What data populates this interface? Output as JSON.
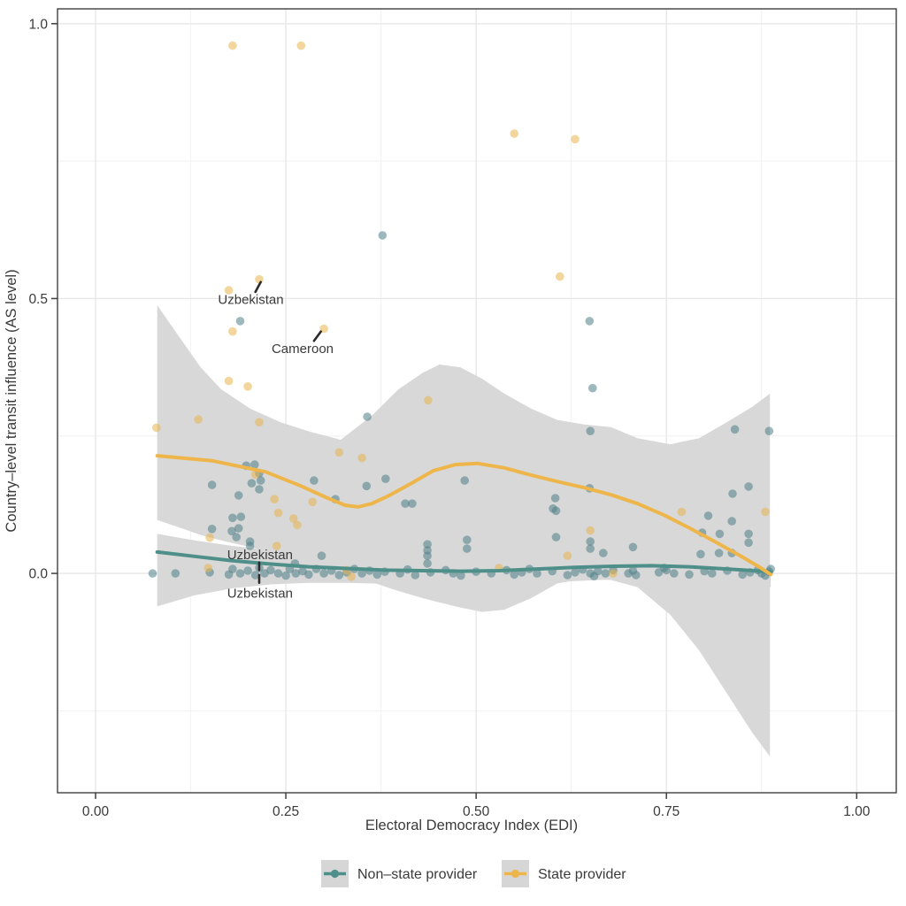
{
  "chart_data": {
    "type": "scatter",
    "title": "",
    "xlabel": "Electoral Democracy Index (EDI)",
    "ylabel": "Country–level transit influence (AS level)",
    "xlim": [
      -0.05,
      1.052
    ],
    "ylim": [
      -0.399,
      1.027
    ],
    "grid": true,
    "legend_position": "bottom",
    "x_major_ticks": [
      {
        "v": 0.0,
        "label": "0.00"
      },
      {
        "v": 0.25,
        "label": "0.25"
      },
      {
        "v": 0.5,
        "label": "0.50"
      },
      {
        "v": 0.75,
        "label": "0.75"
      },
      {
        "v": 1.0,
        "label": "1.00"
      }
    ],
    "x_minor_ticks": [
      0.125,
      0.375,
      0.625,
      0.875
    ],
    "y_major_ticks": [
      {
        "v": 0.0,
        "label": "0.0"
      },
      {
        "v": 0.5,
        "label": "0.5"
      },
      {
        "v": 1.0,
        "label": "1.0"
      }
    ],
    "y_minor_ticks": [
      -0.25,
      0.25,
      0.75
    ],
    "band_color": "#d8d8d8",
    "grid_major_color": "#e7e7e7",
    "grid_minor_color": "#f3f3f3",
    "series": [
      {
        "name": "Non-state provider",
        "line_color": "#4e8f8a",
        "point_color": "#4e7f86",
        "points": [
          [
            0.377,
            0.615
          ],
          [
            0.649,
            0.459
          ],
          [
            0.19,
            0.459
          ],
          [
            0.653,
            0.337
          ],
          [
            0.357,
            0.285
          ],
          [
            0.65,
            0.259
          ],
          [
            0.84,
            0.262
          ],
          [
            0.885,
            0.259
          ],
          [
            0.153,
            0.161
          ],
          [
            0.198,
            0.196
          ],
          [
            0.209,
            0.198
          ],
          [
            0.215,
            0.182
          ],
          [
            0.205,
            0.164
          ],
          [
            0.287,
            0.169
          ],
          [
            0.356,
            0.159
          ],
          [
            0.381,
            0.172
          ],
          [
            0.485,
            0.169
          ],
          [
            0.315,
            0.135
          ],
          [
            0.407,
            0.127
          ],
          [
            0.416,
            0.127
          ],
          [
            0.604,
            0.137
          ],
          [
            0.601,
            0.118
          ],
          [
            0.649,
            0.155
          ],
          [
            0.858,
            0.158
          ],
          [
            0.837,
            0.145
          ],
          [
            0.805,
            0.105
          ],
          [
            0.836,
            0.095
          ],
          [
            0.797,
            0.074
          ],
          [
            0.82,
            0.072
          ],
          [
            0.858,
            0.072
          ],
          [
            0.858,
            0.056
          ],
          [
            0.836,
            0.037
          ],
          [
            0.795,
            0.035
          ],
          [
            0.819,
            0.037
          ],
          [
            0.153,
            0.081
          ],
          [
            0.18,
            0.101
          ],
          [
            0.191,
            0.103
          ],
          [
            0.179,
            0.077
          ],
          [
            0.188,
            0.082
          ],
          [
            0.185,
            0.066
          ],
          [
            0.203,
            0.058
          ],
          [
            0.203,
            0.05
          ],
          [
            0.262,
            0.018
          ],
          [
            0.297,
            0.032
          ],
          [
            0.188,
            0.142
          ],
          [
            0.215,
            0.153
          ],
          [
            0.217,
            0.169
          ],
          [
            0.488,
            0.061
          ],
          [
            0.488,
            0.045
          ],
          [
            0.436,
            0.053
          ],
          [
            0.436,
            0.042
          ],
          [
            0.436,
            0.032
          ],
          [
            0.436,
            0.018
          ],
          [
            0.605,
            0.114
          ],
          [
            0.605,
            0.066
          ],
          [
            0.65,
            0.058
          ],
          [
            0.65,
            0.045
          ],
          [
            0.667,
            0.037
          ],
          [
            0.706,
            0.048
          ],
          [
            0.706,
            0.005
          ],
          [
            0.747,
            0.01
          ],
          [
            0.075,
            0.0
          ],
          [
            0.105,
            0.0
          ],
          [
            0.15,
            0.002
          ],
          [
            0.175,
            -0.002
          ],
          [
            0.18,
            0.008
          ],
          [
            0.19,
            0.0
          ],
          [
            0.2,
            0.005
          ],
          [
            0.21,
            -0.003
          ],
          [
            0.215,
            0.01
          ],
          [
            0.222,
            0.0
          ],
          [
            0.23,
            0.006
          ],
          [
            0.24,
            0.0
          ],
          [
            0.25,
            -0.004
          ],
          [
            0.255,
            0.008
          ],
          [
            0.263,
            0.0
          ],
          [
            0.272,
            0.004
          ],
          [
            0.28,
            -0.002
          ],
          [
            0.29,
            0.008
          ],
          [
            0.3,
            0.0
          ],
          [
            0.31,
            0.005
          ],
          [
            0.32,
            -0.003
          ],
          [
            0.33,
            0.002
          ],
          [
            0.34,
            0.008
          ],
          [
            0.35,
            0.0
          ],
          [
            0.36,
            0.005
          ],
          [
            0.37,
            -0.002
          ],
          [
            0.38,
            0.003
          ],
          [
            0.4,
            0.0
          ],
          [
            0.41,
            0.007
          ],
          [
            0.42,
            -0.003
          ],
          [
            0.44,
            0.002
          ],
          [
            0.46,
            0.006
          ],
          [
            0.47,
            0.0
          ],
          [
            0.48,
            -0.004
          ],
          [
            0.5,
            0.003
          ],
          [
            0.52,
            0.0
          ],
          [
            0.54,
            0.006
          ],
          [
            0.55,
            -0.002
          ],
          [
            0.56,
            0.002
          ],
          [
            0.57,
            0.008
          ],
          [
            0.58,
            0.0
          ],
          [
            0.6,
            0.004
          ],
          [
            0.62,
            -0.003
          ],
          [
            0.63,
            0.002
          ],
          [
            0.64,
            0.007
          ],
          [
            0.65,
            0.0
          ],
          [
            0.655,
            -0.005
          ],
          [
            0.66,
            0.004
          ],
          [
            0.67,
            0.0
          ],
          [
            0.68,
            0.006
          ],
          [
            0.7,
            0.0
          ],
          [
            0.71,
            -0.003
          ],
          [
            0.74,
            0.002
          ],
          [
            0.75,
            0.006
          ],
          [
            0.76,
            0.0
          ],
          [
            0.78,
            -0.002
          ],
          [
            0.8,
            0.004
          ],
          [
            0.81,
            0.0
          ],
          [
            0.83,
            0.005
          ],
          [
            0.85,
            -0.002
          ],
          [
            0.86,
            0.002
          ],
          [
            0.87,
            0.006
          ],
          [
            0.875,
            0.0
          ],
          [
            0.88,
            -0.004
          ],
          [
            0.885,
            0.003
          ],
          [
            0.887,
            0.008
          ]
        ],
        "smooth_x": [
          0.081,
          0.13,
          0.18,
          0.23,
          0.28,
          0.33,
          0.38,
          0.43,
          0.48,
          0.53,
          0.58,
          0.63,
          0.68,
          0.73,
          0.78,
          0.83,
          0.887
        ],
        "smooth_y": [
          0.039,
          0.031,
          0.023,
          0.017,
          0.012,
          0.009,
          0.006,
          0.005,
          0.004,
          0.005,
          0.008,
          0.011,
          0.013,
          0.014,
          0.012,
          0.008,
          0.003
        ],
        "band_x": [
          0.081,
          0.13,
          0.18,
          0.23,
          0.28,
          0.33,
          0.38,
          0.43,
          0.48,
          0.53,
          0.58,
          0.63,
          0.68,
          0.73,
          0.78,
          0.83,
          0.887
        ],
        "band_upper": [
          0.072,
          0.06,
          0.05,
          0.042,
          0.033,
          0.026,
          0.021,
          0.018,
          0.017,
          0.018,
          0.021,
          0.024,
          0.026,
          0.025,
          0.022,
          0.018,
          0.013
        ],
        "band_lower": [
          -0.06,
          -0.04,
          -0.027,
          -0.02,
          -0.017,
          -0.017,
          -0.019,
          -0.021,
          -0.022,
          -0.021,
          -0.018,
          -0.014,
          -0.011,
          -0.012,
          -0.015,
          -0.019,
          -0.024
        ]
      },
      {
        "name": "State provider",
        "line_color": "#eeb64a",
        "point_color": "#e8b54c",
        "points": [
          [
            0.18,
            0.96
          ],
          [
            0.27,
            0.96
          ],
          [
            0.55,
            0.8
          ],
          [
            0.63,
            0.79
          ],
          [
            0.61,
            0.54
          ],
          [
            0.215,
            0.535
          ],
          [
            0.175,
            0.515
          ],
          [
            0.18,
            0.44
          ],
          [
            0.3,
            0.445
          ],
          [
            0.175,
            0.35
          ],
          [
            0.2,
            0.34
          ],
          [
            0.437,
            0.315
          ],
          [
            0.135,
            0.28
          ],
          [
            0.08,
            0.265
          ],
          [
            0.215,
            0.275
          ],
          [
            0.32,
            0.22
          ],
          [
            0.35,
            0.21
          ],
          [
            0.21,
            0.18
          ],
          [
            0.285,
            0.13
          ],
          [
            0.235,
            0.135
          ],
          [
            0.24,
            0.11
          ],
          [
            0.26,
            0.1
          ],
          [
            0.265,
            0.088
          ],
          [
            0.15,
            0.065
          ],
          [
            0.238,
            0.05
          ],
          [
            0.148,
            0.01
          ],
          [
            0.33,
            0.006
          ],
          [
            0.336,
            -0.006
          ],
          [
            0.65,
            0.078
          ],
          [
            0.62,
            0.032
          ],
          [
            0.77,
            0.112
          ],
          [
            0.88,
            0.112
          ],
          [
            0.68,
            0.0
          ],
          [
            0.53,
            0.01
          ]
        ],
        "smooth_x": [
          0.081,
          0.153,
          0.223,
          0.27,
          0.305,
          0.328,
          0.345,
          0.363,
          0.386,
          0.415,
          0.444,
          0.473,
          0.502,
          0.537,
          0.572,
          0.607,
          0.642,
          0.677,
          0.712,
          0.747,
          0.781,
          0.816,
          0.851,
          0.874,
          0.887
        ],
        "smooth_y": [
          0.214,
          0.205,
          0.185,
          0.159,
          0.137,
          0.124,
          0.121,
          0.127,
          0.142,
          0.164,
          0.187,
          0.198,
          0.2,
          0.192,
          0.179,
          0.167,
          0.156,
          0.143,
          0.127,
          0.106,
          0.082,
          0.056,
          0.029,
          0.01,
          -0.002
        ],
        "band_x": [
          0.081,
          0.107,
          0.138,
          0.165,
          0.203,
          0.243,
          0.281,
          0.322,
          0.363,
          0.398,
          0.43,
          0.452,
          0.479,
          0.508,
          0.537,
          0.572,
          0.607,
          0.642,
          0.677,
          0.712,
          0.755,
          0.793,
          0.828,
          0.863,
          0.886
        ],
        "band_upper": [
          0.488,
          0.436,
          0.375,
          0.335,
          0.3,
          0.275,
          0.258,
          0.243,
          0.287,
          0.335,
          0.365,
          0.38,
          0.375,
          0.354,
          0.327,
          0.3,
          0.279,
          0.271,
          0.266,
          0.246,
          0.235,
          0.246,
          0.274,
          0.303,
          0.327
        ],
        "band_lower": [
          0.097,
          0.085,
          0.07,
          0.06,
          0.048,
          0.035,
          0.022,
          0.005,
          -0.016,
          -0.032,
          -0.045,
          -0.053,
          -0.062,
          -0.07,
          -0.066,
          -0.045,
          -0.018,
          -0.01,
          -0.012,
          -0.025,
          -0.075,
          -0.14,
          -0.215,
          -0.29,
          -0.333
        ]
      }
    ],
    "annotations": [
      {
        "text": "Uzbekistan",
        "lx": 0.204,
        "ly": 0.498,
        "sx1": 0.21,
        "sy1": 0.512,
        "sx2": 0.217,
        "sy2": 0.53
      },
      {
        "text": "Cameroon",
        "lx": 0.272,
        "ly": 0.409,
        "sx1": 0.287,
        "sy1": 0.423,
        "sx2": 0.296,
        "sy2": 0.44
      },
      {
        "text": "Uzbekistan",
        "lx": 0.216,
        "ly": 0.034,
        "sx1": 0.215,
        "sy1": 0.02,
        "sx2": 0.215,
        "sy2": 0.006
      },
      {
        "text": "Uzbekistan",
        "lx": 0.216,
        "ly": -0.036,
        "sx1": 0.215,
        "sy1": -0.003,
        "sx2": 0.215,
        "sy2": -0.017
      }
    ]
  },
  "legend": {
    "swatch_bg": "#d6d6d6",
    "entries": [
      {
        "label": "Non–state provider",
        "color": "#4e8f8a"
      },
      {
        "label": "State provider",
        "color": "#eeb64a"
      }
    ]
  }
}
